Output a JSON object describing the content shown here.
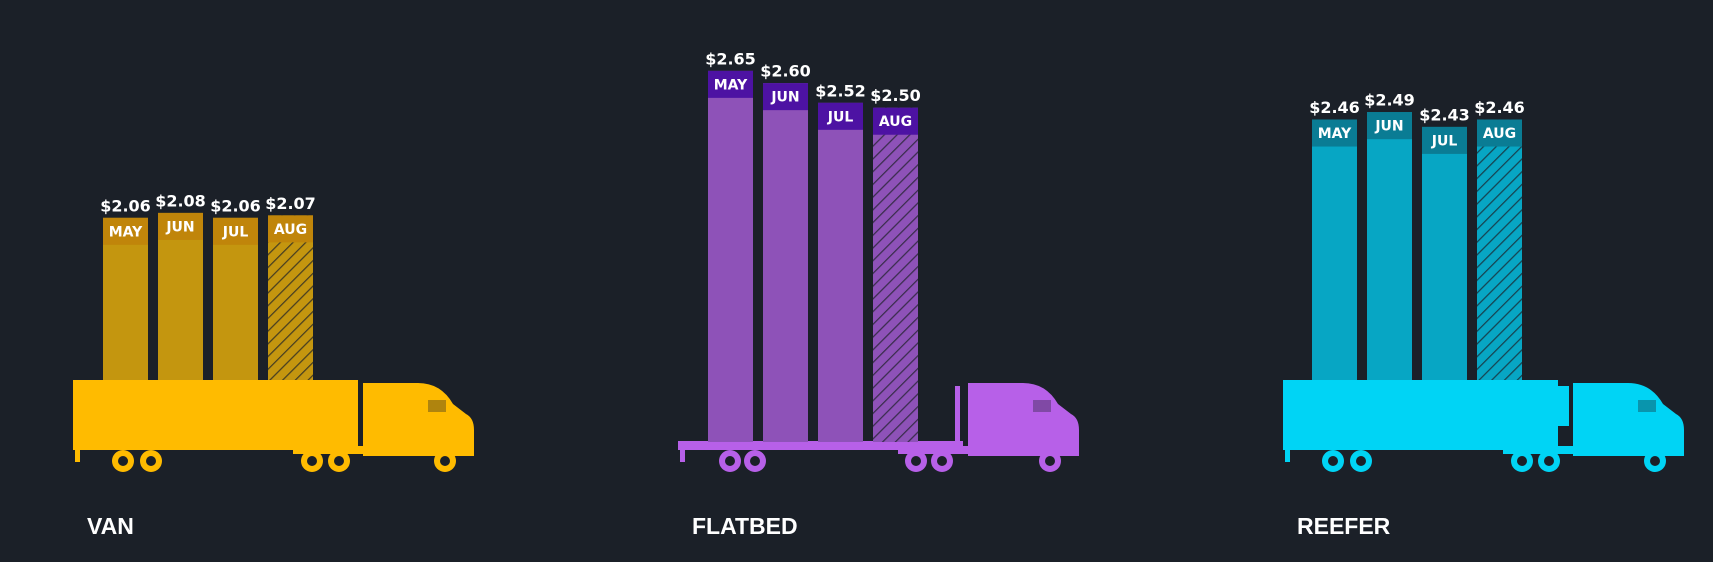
{
  "chart_data": [
    {
      "type": "bar",
      "title": "VAN",
      "categories": [
        "MAY",
        "JUN",
        "JUL",
        "AUG"
      ],
      "values": [
        2.06,
        2.08,
        2.06,
        2.07
      ],
      "value_labels": [
        "$2.06",
        "$2.08",
        "$2.06",
        "$2.07"
      ],
      "color": "#c4960f",
      "label_color": "#c0850a",
      "ylim": [
        1.4,
        2.8
      ],
      "hatched": [
        false,
        false,
        false,
        true
      ]
    },
    {
      "type": "bar",
      "title": "FLATBED",
      "categories": [
        "MAY",
        "JUN",
        "JUL",
        "AUG"
      ],
      "values": [
        2.65,
        2.6,
        2.52,
        2.5
      ],
      "value_labels": [
        "$2.65",
        "$2.60",
        "$2.52",
        "$2.50"
      ],
      "color": "#8e52b8",
      "label_color": "#4d12a3",
      "ylim": [
        1.14,
        2.8
      ],
      "hatched": [
        false,
        false,
        false,
        true
      ]
    },
    {
      "type": "bar",
      "title": "REEFER",
      "categories": [
        "MAY",
        "JUN",
        "JUL",
        "AUG"
      ],
      "values": [
        2.46,
        2.49,
        2.43,
        2.46
      ],
      "value_labels": [
        "$2.46",
        "$2.49",
        "$2.43",
        "$2.46"
      ],
      "color": "#07a6c4",
      "label_color": "#0a7c94",
      "ylim": [
        1.4,
        2.8
      ],
      "hatched": [
        false,
        false,
        false,
        true
      ]
    }
  ]
}
